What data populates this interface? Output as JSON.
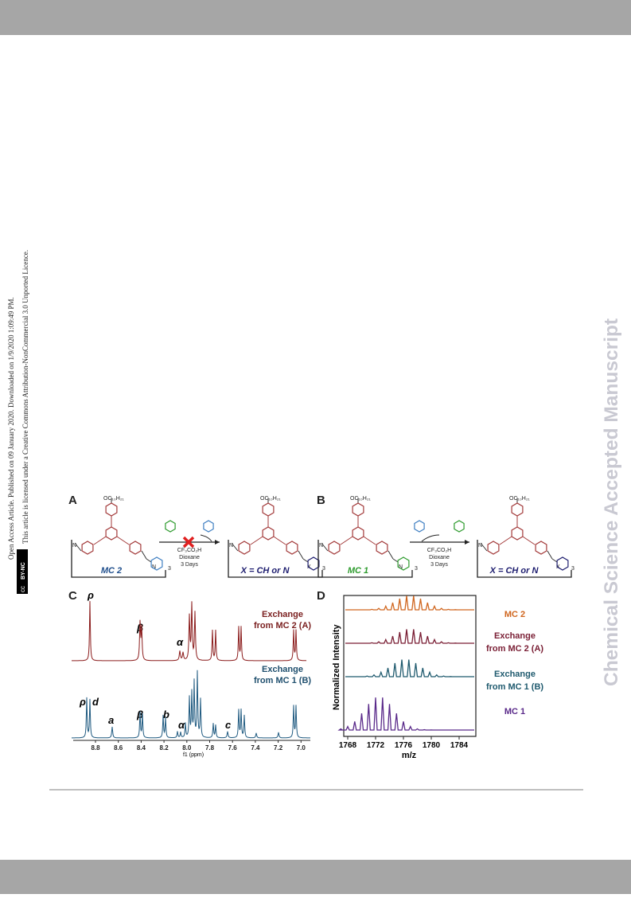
{
  "sidebar": {
    "line1": "Open Access Article. Published on 09 January 2020. Downloaded on 1/9/2020 1:09:49 PM.",
    "line2": "This article is licensed under a Creative Commons Attribution-NonCommercial 3.0 Unported Licence.",
    "badge_icon": "cc",
    "badge": "BY-NC"
  },
  "watermark": "Chemical Science Accepted Manuscript",
  "figure": {
    "panel_a": {
      "label": "A",
      "substituent": "OC₁₀H₂₁",
      "reactant": "MC 2",
      "reagents": [
        "CF₃CO₂H",
        "Dioxane",
        "3 Days"
      ],
      "product": "X = CH or N",
      "repeat": "3",
      "n_atom": "N",
      "x_atom": "X"
    },
    "panel_b": {
      "label": "B",
      "substituent": "OC₁₀H₂₁",
      "reactant": "MC 1",
      "reagents": [
        "CF₃CO₂H",
        "Dioxane",
        "3 Days"
      ],
      "product": "X = CH or N",
      "repeat": "3",
      "n_atom": "N",
      "x_atom": "X"
    },
    "panel_c": {
      "label": "C",
      "top_labels": [
        "ρ",
        "β",
        "α"
      ],
      "bottom_labels": [
        "ρ",
        "d",
        "a",
        "β",
        "b",
        "α",
        "c"
      ],
      "top_trace": [
        "Exchange",
        "from MC 2 (A)"
      ],
      "bottom_trace": [
        "Exchange",
        "from MC 1 (B)"
      ],
      "xticks": [
        "8.8",
        "8.6",
        "8.4",
        "8.2",
        "8.0",
        "7.8",
        "7.6",
        "7.4",
        "7.2",
        "7.0"
      ],
      "xlabel": "f1 (ppm)"
    },
    "panel_d": {
      "label": "D",
      "ylabel": "Normalized Intensity",
      "xlabel": "m/z",
      "xticks": [
        "1768",
        "1772",
        "1776",
        "1780",
        "1784"
      ],
      "traces": [
        [
          "MC 2"
        ],
        [
          "Exchange",
          "from MC 2 (A)"
        ],
        [
          "Exchange",
          "from MC 1 (B)"
        ],
        [
          "MC 1"
        ]
      ]
    }
  }
}
